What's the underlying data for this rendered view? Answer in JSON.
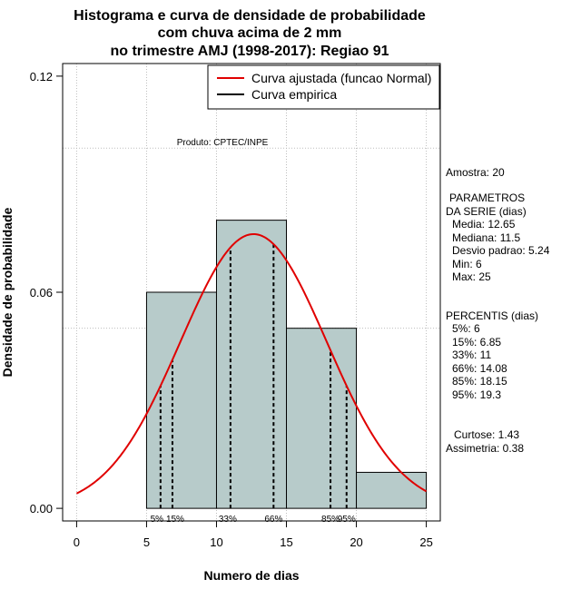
{
  "chart_data": {
    "type": "histogram",
    "title_lines": [
      "Histograma e curva de densidade de probabilidade",
      "com chuva acima de 2 mm",
      "no trimestre AMJ (1998-2017): Regiao 91"
    ],
    "xlabel": "Numero de dias",
    "ylabel": "Densidade de probabilidade",
    "xlim": [
      -1,
      26
    ],
    "ylim": [
      -0.0035,
      0.1235
    ],
    "x_ticks": [
      0,
      5,
      10,
      15,
      20,
      25
    ],
    "y_ticks": [
      0.0,
      0.06,
      0.12
    ],
    "y_tick_labels": [
      "0.00",
      "0.06",
      "0.12"
    ],
    "x_grid": [
      0,
      5,
      10,
      15,
      20,
      25
    ],
    "y_grid": [
      0.05,
      0.1
    ],
    "bars": [
      {
        "x0": 5,
        "x1": 10,
        "density": 0.06
      },
      {
        "x0": 10,
        "x1": 15,
        "density": 0.08
      },
      {
        "x0": 15,
        "x1": 20,
        "density": 0.05
      },
      {
        "x0": 20,
        "x1": 25,
        "density": 0.01
      }
    ],
    "normal_fit": {
      "mean": 12.65,
      "sd": 5.24,
      "x_from": 0,
      "x_to": 25
    },
    "percentile_lines": [
      {
        "label": "5%",
        "value": 6
      },
      {
        "label": "15%",
        "value": 6.85
      },
      {
        "label": "33%",
        "value": 11
      },
      {
        "label": "66%",
        "value": 14.08
      },
      {
        "label": "85%",
        "value": 18.15
      },
      {
        "label": "95%",
        "value": 19.3
      }
    ],
    "legend": [
      {
        "label": "Curva ajustada (funcao Normal)",
        "color": "#e00000"
      },
      {
        "label": "Curva empirica",
        "color": "#000000"
      }
    ],
    "annotation": "Produto: CPTEC/INPE"
  },
  "stats_panel": {
    "amostra": "Amostra: 20",
    "parametros_title": "PARAMETROS",
    "serie_title": "DA SERIE (dias)",
    "media": "Media: 12.65",
    "mediana": "Mediana: 11.5",
    "desvio": "Desvio padrao: 5.24",
    "min": "Min: 6",
    "max": "Max: 25",
    "percentis_title": "PERCENTIS (dias)",
    "p5": "5%: 6",
    "p15": "15%: 6.85",
    "p33": "33%: 11",
    "p66": "66%: 14.08",
    "p85": "85%: 18.15",
    "p95": "95%: 19.3",
    "curtose": "Curtose: 1.43",
    "assimetria": "Assimetria: 0.38"
  },
  "colors": {
    "bar_fill": "#b7cbca",
    "curve": "#e00000",
    "grid": "#bdbdbd"
  }
}
